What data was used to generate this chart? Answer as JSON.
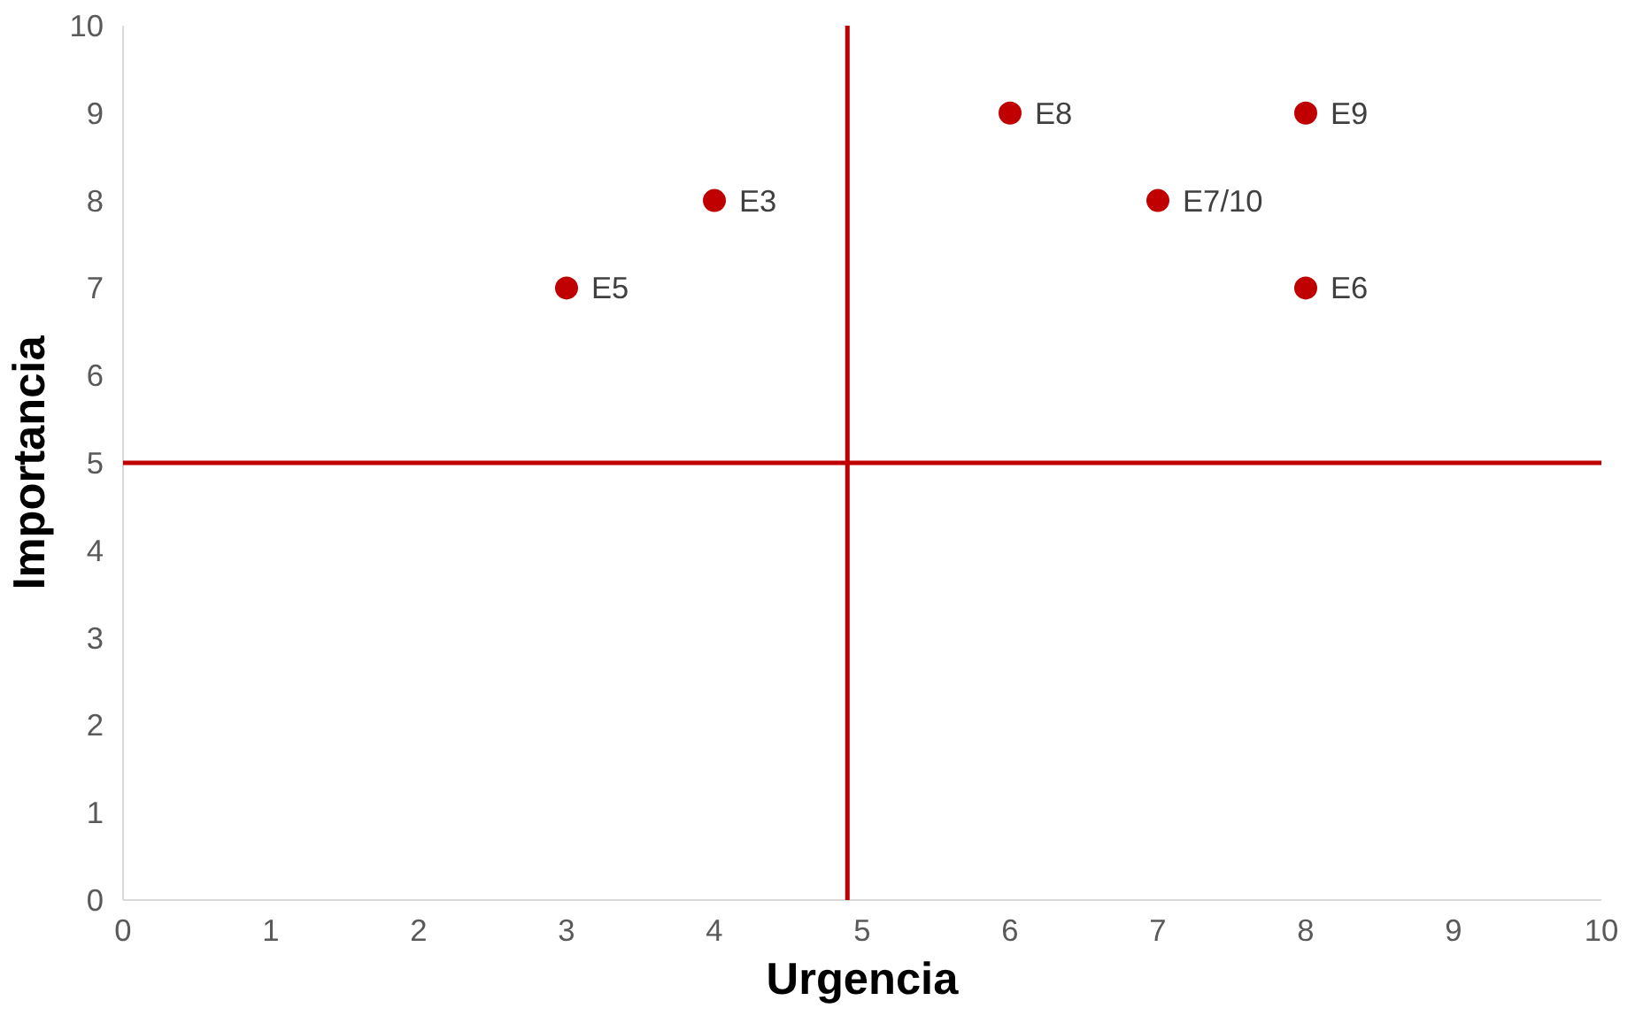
{
  "chart_data": {
    "type": "scatter",
    "xlabel": "Urgencia",
    "ylabel": "Importancia",
    "x": [
      3,
      4,
      6,
      7,
      8,
      8
    ],
    "values": [
      7,
      8,
      9,
      8,
      9,
      7
    ],
    "color": "#c00000",
    "marker": "circle",
    "xlim": [
      0,
      10
    ],
    "xticks": [
      0,
      1,
      2,
      3,
      4,
      5,
      6,
      7,
      8,
      9,
      10
    ],
    "ylim": [
      0,
      10
    ],
    "yticks": [
      0,
      1,
      2,
      3,
      4,
      5,
      6,
      7,
      8,
      9,
      10
    ],
    "grid": false,
    "ref_lines": [
      {
        "axis": "x",
        "value": 4.9,
        "color": "#c00000"
      },
      {
        "axis": "y",
        "value": 5,
        "color": "#c00000"
      }
    ],
    "annotations": [
      {
        "text": "E5",
        "x": 3,
        "y": 7
      },
      {
        "text": "E3",
        "x": 4,
        "y": 8
      },
      {
        "text": "E8",
        "x": 6,
        "y": 9
      },
      {
        "text": "E7/10",
        "x": 7,
        "y": 8
      },
      {
        "text": "E9",
        "x": 8,
        "y": 9
      },
      {
        "text": "E6",
        "x": 8,
        "y": 7
      }
    ]
  }
}
